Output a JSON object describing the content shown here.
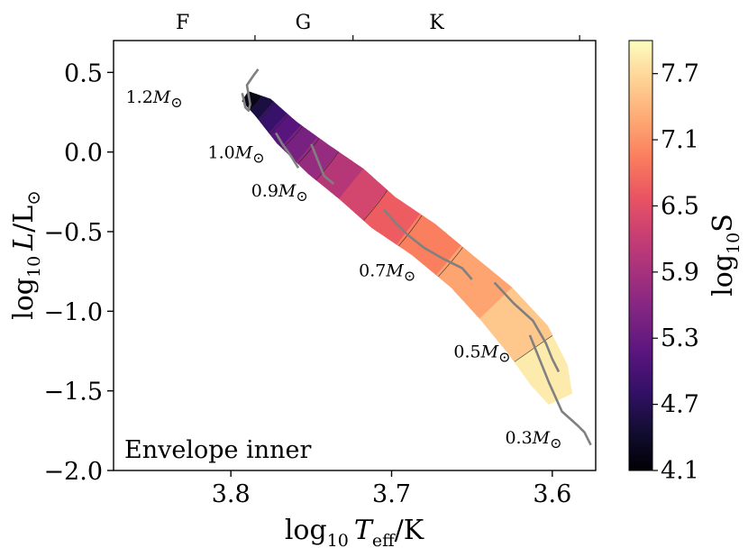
{
  "chart_data": {
    "type": "scatter",
    "title": "",
    "panel_label": "Envelope inner",
    "xlabel": {
      "prefix": "log",
      "sub": "10",
      "var": "T",
      "var_sub": "eff",
      "unit": "/K"
    },
    "ylabel": {
      "prefix": "log",
      "sub": "10",
      "var": "L",
      "unit": "/L",
      "unit_symbol": "⊙"
    },
    "x_axis": {
      "inverted": true,
      "xlim": [
        3.873,
        3.573
      ],
      "ticks": [
        3.8,
        3.7,
        3.6
      ],
      "tick_labels": [
        "3.8",
        "3.7",
        "3.6"
      ]
    },
    "y_axis": {
      "ylim": [
        -2.0,
        0.7
      ],
      "ticks": [
        0.5,
        0.0,
        -0.5,
        -1.0,
        -1.5,
        -2.0
      ],
      "tick_labels": [
        "0.5",
        "0.0",
        "−0.5",
        "−1.0",
        "−1.5",
        "−2.0"
      ]
    },
    "spectral_types": {
      "labels": [
        "F",
        "G",
        "K"
      ],
      "label_x": [
        3.83,
        3.755,
        3.672
      ],
      "boundaries": [
        3.785,
        3.724,
        3.583
      ]
    },
    "colorbar": {
      "label": {
        "prefix": "log",
        "sub": "10",
        "var": "S"
      },
      "range": [
        4.1,
        8.0
      ],
      "ticks": [
        4.1,
        4.7,
        5.3,
        5.9,
        6.5,
        7.1,
        7.7
      ],
      "tick_labels": [
        "4.1",
        "4.7",
        "5.3",
        "5.9",
        "6.5",
        "7.1",
        "7.7"
      ],
      "levels": [
        4.1,
        4.4,
        4.7,
        5.0,
        5.3,
        5.6,
        5.9,
        6.2,
        6.5,
        6.8,
        7.1,
        7.4,
        7.7,
        8.0
      ],
      "colormap": "magma",
      "colors": [
        "#000004",
        "#120d31",
        "#331067",
        "#59157e",
        "#7e2482",
        "#a3307e",
        "#c83e73",
        "#e95462",
        "#fa7d5e",
        "#fea973",
        "#fed395",
        "#fcfdbf"
      ]
    },
    "colored_region": {
      "centerline": [
        {
          "x": 3.791,
          "y": 0.35,
          "half_width": 0.035,
          "value": 4.1
        },
        {
          "x": 3.78,
          "y": 0.28,
          "half_width": 0.07,
          "value": 4.6
        },
        {
          "x": 3.765,
          "y": 0.12,
          "half_width": 0.09,
          "value": 5.2
        },
        {
          "x": 3.745,
          "y": -0.05,
          "half_width": 0.11,
          "value": 5.8
        },
        {
          "x": 3.725,
          "y": -0.2,
          "half_width": 0.12,
          "value": 6.2
        },
        {
          "x": 3.705,
          "y": -0.38,
          "half_width": 0.12,
          "value": 6.6
        },
        {
          "x": 3.68,
          "y": -0.55,
          "half_width": 0.12,
          "value": 6.9
        },
        {
          "x": 3.655,
          "y": -0.76,
          "half_width": 0.12,
          "value": 7.2
        },
        {
          "x": 3.635,
          "y": -0.95,
          "half_width": 0.14,
          "value": 7.4
        },
        {
          "x": 3.615,
          "y": -1.18,
          "half_width": 0.15,
          "value": 7.65
        },
        {
          "x": 3.602,
          "y": -1.4,
          "half_width": 0.13,
          "value": 7.85
        },
        {
          "x": 3.595,
          "y": -1.55,
          "half_width": 0.08,
          "value": 7.95
        }
      ]
    },
    "series": [
      {
        "name": "1.2M⊙",
        "label_mass": "1.2",
        "label_anchor": {
          "x": 3.83,
          "y": 0.31
        },
        "x": [
          3.793,
          3.792,
          3.791,
          3.789,
          3.788,
          3.79,
          3.786,
          3.783
        ],
        "y": [
          0.37,
          0.33,
          0.28,
          0.26,
          0.3,
          0.42,
          0.48,
          0.52
        ]
      },
      {
        "name": "1.0M⊙",
        "label_mass": "1.0",
        "label_anchor": {
          "x": 3.779,
          "y": -0.04
        },
        "x": [
          3.772,
          3.768,
          3.763,
          3.758
        ],
        "y": [
          0.12,
          0.05,
          -0.02,
          -0.1
        ]
      },
      {
        "name": "0.9M⊙",
        "label_mass": "0.9",
        "label_anchor": {
          "x": 3.752,
          "y": -0.28
        },
        "x": [
          3.75,
          3.746,
          3.742,
          3.736
        ],
        "y": [
          0.05,
          -0.05,
          -0.15,
          -0.2
        ]
      },
      {
        "name": "0.7M⊙",
        "label_mass": "0.7",
        "label_anchor": {
          "x": 3.685,
          "y": -0.78
        },
        "x": [
          3.705,
          3.698,
          3.69,
          3.68,
          3.668,
          3.656,
          3.65
        ],
        "y": [
          -0.36,
          -0.44,
          -0.52,
          -0.6,
          -0.67,
          -0.73,
          -0.8
        ]
      },
      {
        "name": "0.5M⊙",
        "label_mass": "0.5",
        "label_anchor": {
          "x": 3.626,
          "y": -1.29
        },
        "x": [
          3.636,
          3.624,
          3.612,
          3.604,
          3.6,
          3.596
        ],
        "y": [
          -0.82,
          -0.95,
          -1.06,
          -1.2,
          -1.3,
          -1.38
        ]
      },
      {
        "name": "0.3M⊙",
        "label_mass": "0.3",
        "label_anchor": {
          "x": 3.594,
          "y": -1.83
        },
        "x": [
          3.614,
          3.608,
          3.602,
          3.594,
          3.584,
          3.58,
          3.576
        ],
        "y": [
          -1.15,
          -1.3,
          -1.45,
          -1.63,
          -1.72,
          -1.76,
          -1.84
        ]
      }
    ],
    "track_color": "#808080",
    "legend": "none",
    "grid": false
  }
}
